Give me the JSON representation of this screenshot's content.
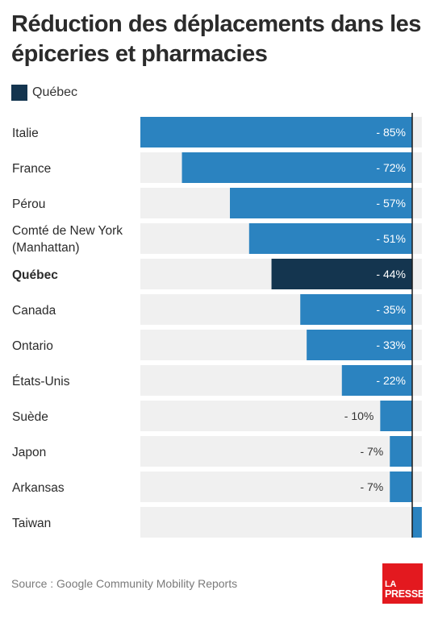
{
  "title": "Réduction des déplacements dans les épiceries et pharmacies",
  "source": "Source : Google Community Mobility Reports",
  "logo": {
    "line1": "LA",
    "line2": "PRESSE",
    "color": "#e3191f"
  },
  "colors": {
    "bar": "#2b83c0",
    "highlight": "#14354f",
    "track": "#f0f0f0",
    "axis": "#1a1a1a"
  },
  "chart_data": {
    "type": "bar",
    "orientation": "horizontal",
    "title": "Réduction des déplacements dans les épiceries et pharmacies",
    "legend": [
      {
        "label": "Québec",
        "color": "#14354f"
      }
    ],
    "legend_position": "top-left",
    "xlim": [
      -85,
      3
    ],
    "grid": false,
    "highlight": "Québec",
    "categories": [
      "Italie",
      "France",
      "Pérou",
      "Comté de New York (Manhattan)",
      "Québec",
      "Canada",
      "Ontario",
      "États-Unis",
      "Suède",
      "Japon",
      "Arkansas",
      "Taiwan"
    ],
    "label_lines": [
      [
        "Italie"
      ],
      [
        "France"
      ],
      [
        "Pérou"
      ],
      [
        "Comté de New York",
        "(Manhattan)"
      ],
      [
        "Québec"
      ],
      [
        "Canada"
      ],
      [
        "Ontario"
      ],
      [
        "États-Unis"
      ],
      [
        "Suède"
      ],
      [
        "Japon"
      ],
      [
        "Arkansas"
      ],
      [
        "Taiwan"
      ]
    ],
    "values": [
      -85,
      -72,
      -57,
      -51,
      -44,
      -35,
      -33,
      -22,
      -10,
      -7,
      -7,
      3
    ],
    "value_labels": [
      "- 85%",
      "- 72%",
      "- 57%",
      "- 51%",
      "- 44%",
      "- 35%",
      "- 33%",
      "- 22%",
      "- 10%",
      "- 7%",
      "- 7%",
      ""
    ]
  }
}
